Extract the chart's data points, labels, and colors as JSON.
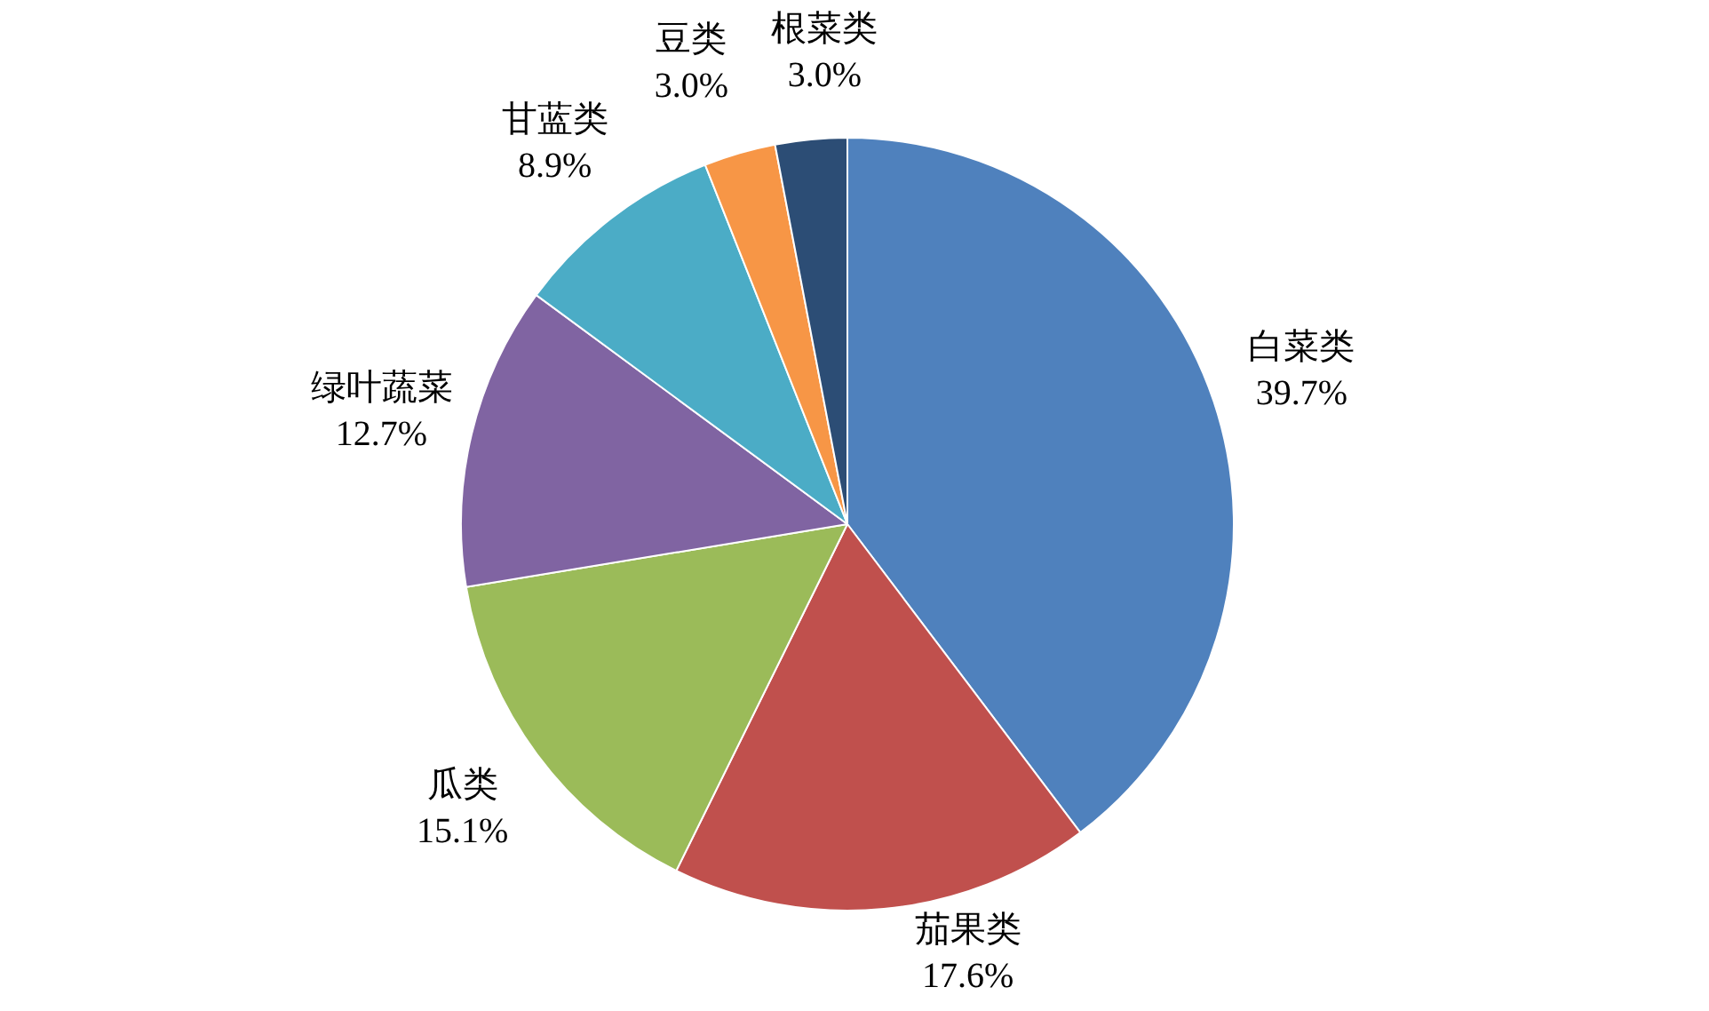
{
  "chart_data": {
    "type": "pie",
    "categories": [
      "白菜类",
      "茄果类",
      "瓜类",
      "绿叶蔬菜",
      "甘蓝类",
      "豆类",
      "根菜类"
    ],
    "values": [
      39.7,
      17.6,
      15.1,
      12.7,
      8.9,
      3.0,
      3.0
    ],
    "value_labels": [
      "39.7%",
      "17.6%",
      "15.1%",
      "12.7%",
      "8.9%",
      "3.0%",
      "3.0%"
    ],
    "colors": [
      "#4f81bd",
      "#c0504d",
      "#9bbb59",
      "#8064a2",
      "#4bacc6",
      "#f79646",
      "#2c4d75"
    ],
    "legend": false
  }
}
